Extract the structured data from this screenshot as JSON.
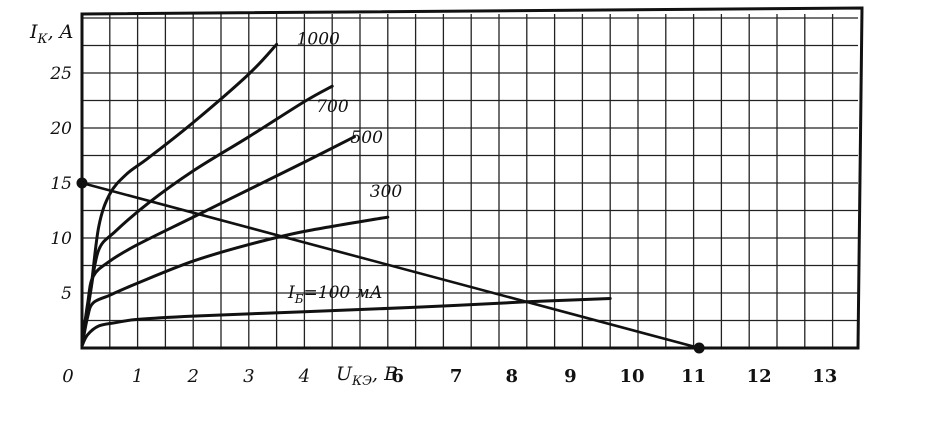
{
  "chart_data": {
    "type": "line",
    "title": "",
    "y_axis": {
      "label_main": "I",
      "label_sub": "К",
      "label_unit": ", A",
      "ticks": [
        "5",
        "10",
        "15",
        "20",
        "25"
      ],
      "range": [
        0,
        30
      ]
    },
    "x_axis": {
      "label_main": "U",
      "label_sub": "КЭ",
      "label_unit": ", B",
      "ticks": [
        "0",
        "1",
        "2",
        "3",
        "4",
        "6",
        "7",
        "8",
        "9",
        "10",
        "11",
        "12",
        "13"
      ],
      "range": [
        0,
        14
      ]
    },
    "grid": true,
    "series": [
      {
        "name": "1000",
        "x": [
          0.0,
          0.15,
          0.3,
          0.5,
          0.8,
          1.2,
          2.0,
          3.0,
          3.5
        ],
        "y": [
          0.5,
          5,
          11,
          14,
          15.8,
          17.3,
          20.5,
          24.9,
          27.6
        ]
      },
      {
        "name": "700",
        "x": [
          0.0,
          0.15,
          0.3,
          0.6,
          1.2,
          2.0,
          3.0,
          4.0,
          4.5
        ],
        "y": [
          0.4,
          5,
          8.9,
          10.6,
          13.2,
          16.1,
          19.2,
          22.4,
          23.8
        ]
      },
      {
        "name": "500",
        "x": [
          0.0,
          0.1,
          0.2,
          0.5,
          1.0,
          2.0,
          3.0,
          4.0,
          4.9
        ],
        "y": [
          0.3,
          4,
          6.5,
          7.9,
          9.4,
          11.9,
          14.4,
          16.9,
          19.2
        ]
      },
      {
        "name": "300",
        "x": [
          0.0,
          0.1,
          0.2,
          0.5,
          1.0,
          2.0,
          3.0,
          4.0,
          5.5
        ],
        "y": [
          0.2,
          2.8,
          4.1,
          4.8,
          5.9,
          7.9,
          9.4,
          10.6,
          11.9
        ]
      },
      {
        "name": "100 мА",
        "prefix_main": "I",
        "prefix_sub": "Б",
        "prefix_eq": "=",
        "x": [
          0.0,
          0.1,
          0.3,
          0.6,
          1.0,
          2.0,
          4.0,
          6.0,
          8.0,
          9.5
        ],
        "y": [
          0.2,
          1.2,
          2.0,
          2.3,
          2.6,
          2.9,
          3.3,
          3.7,
          4.2,
          4.5
        ]
      }
    ],
    "load_line": {
      "x": [
        0,
        11.1
      ],
      "y": [
        15,
        0
      ]
    },
    "markers": [
      {
        "x": 0,
        "y": 15
      },
      {
        "x": 11.1,
        "y": 0
      }
    ]
  }
}
